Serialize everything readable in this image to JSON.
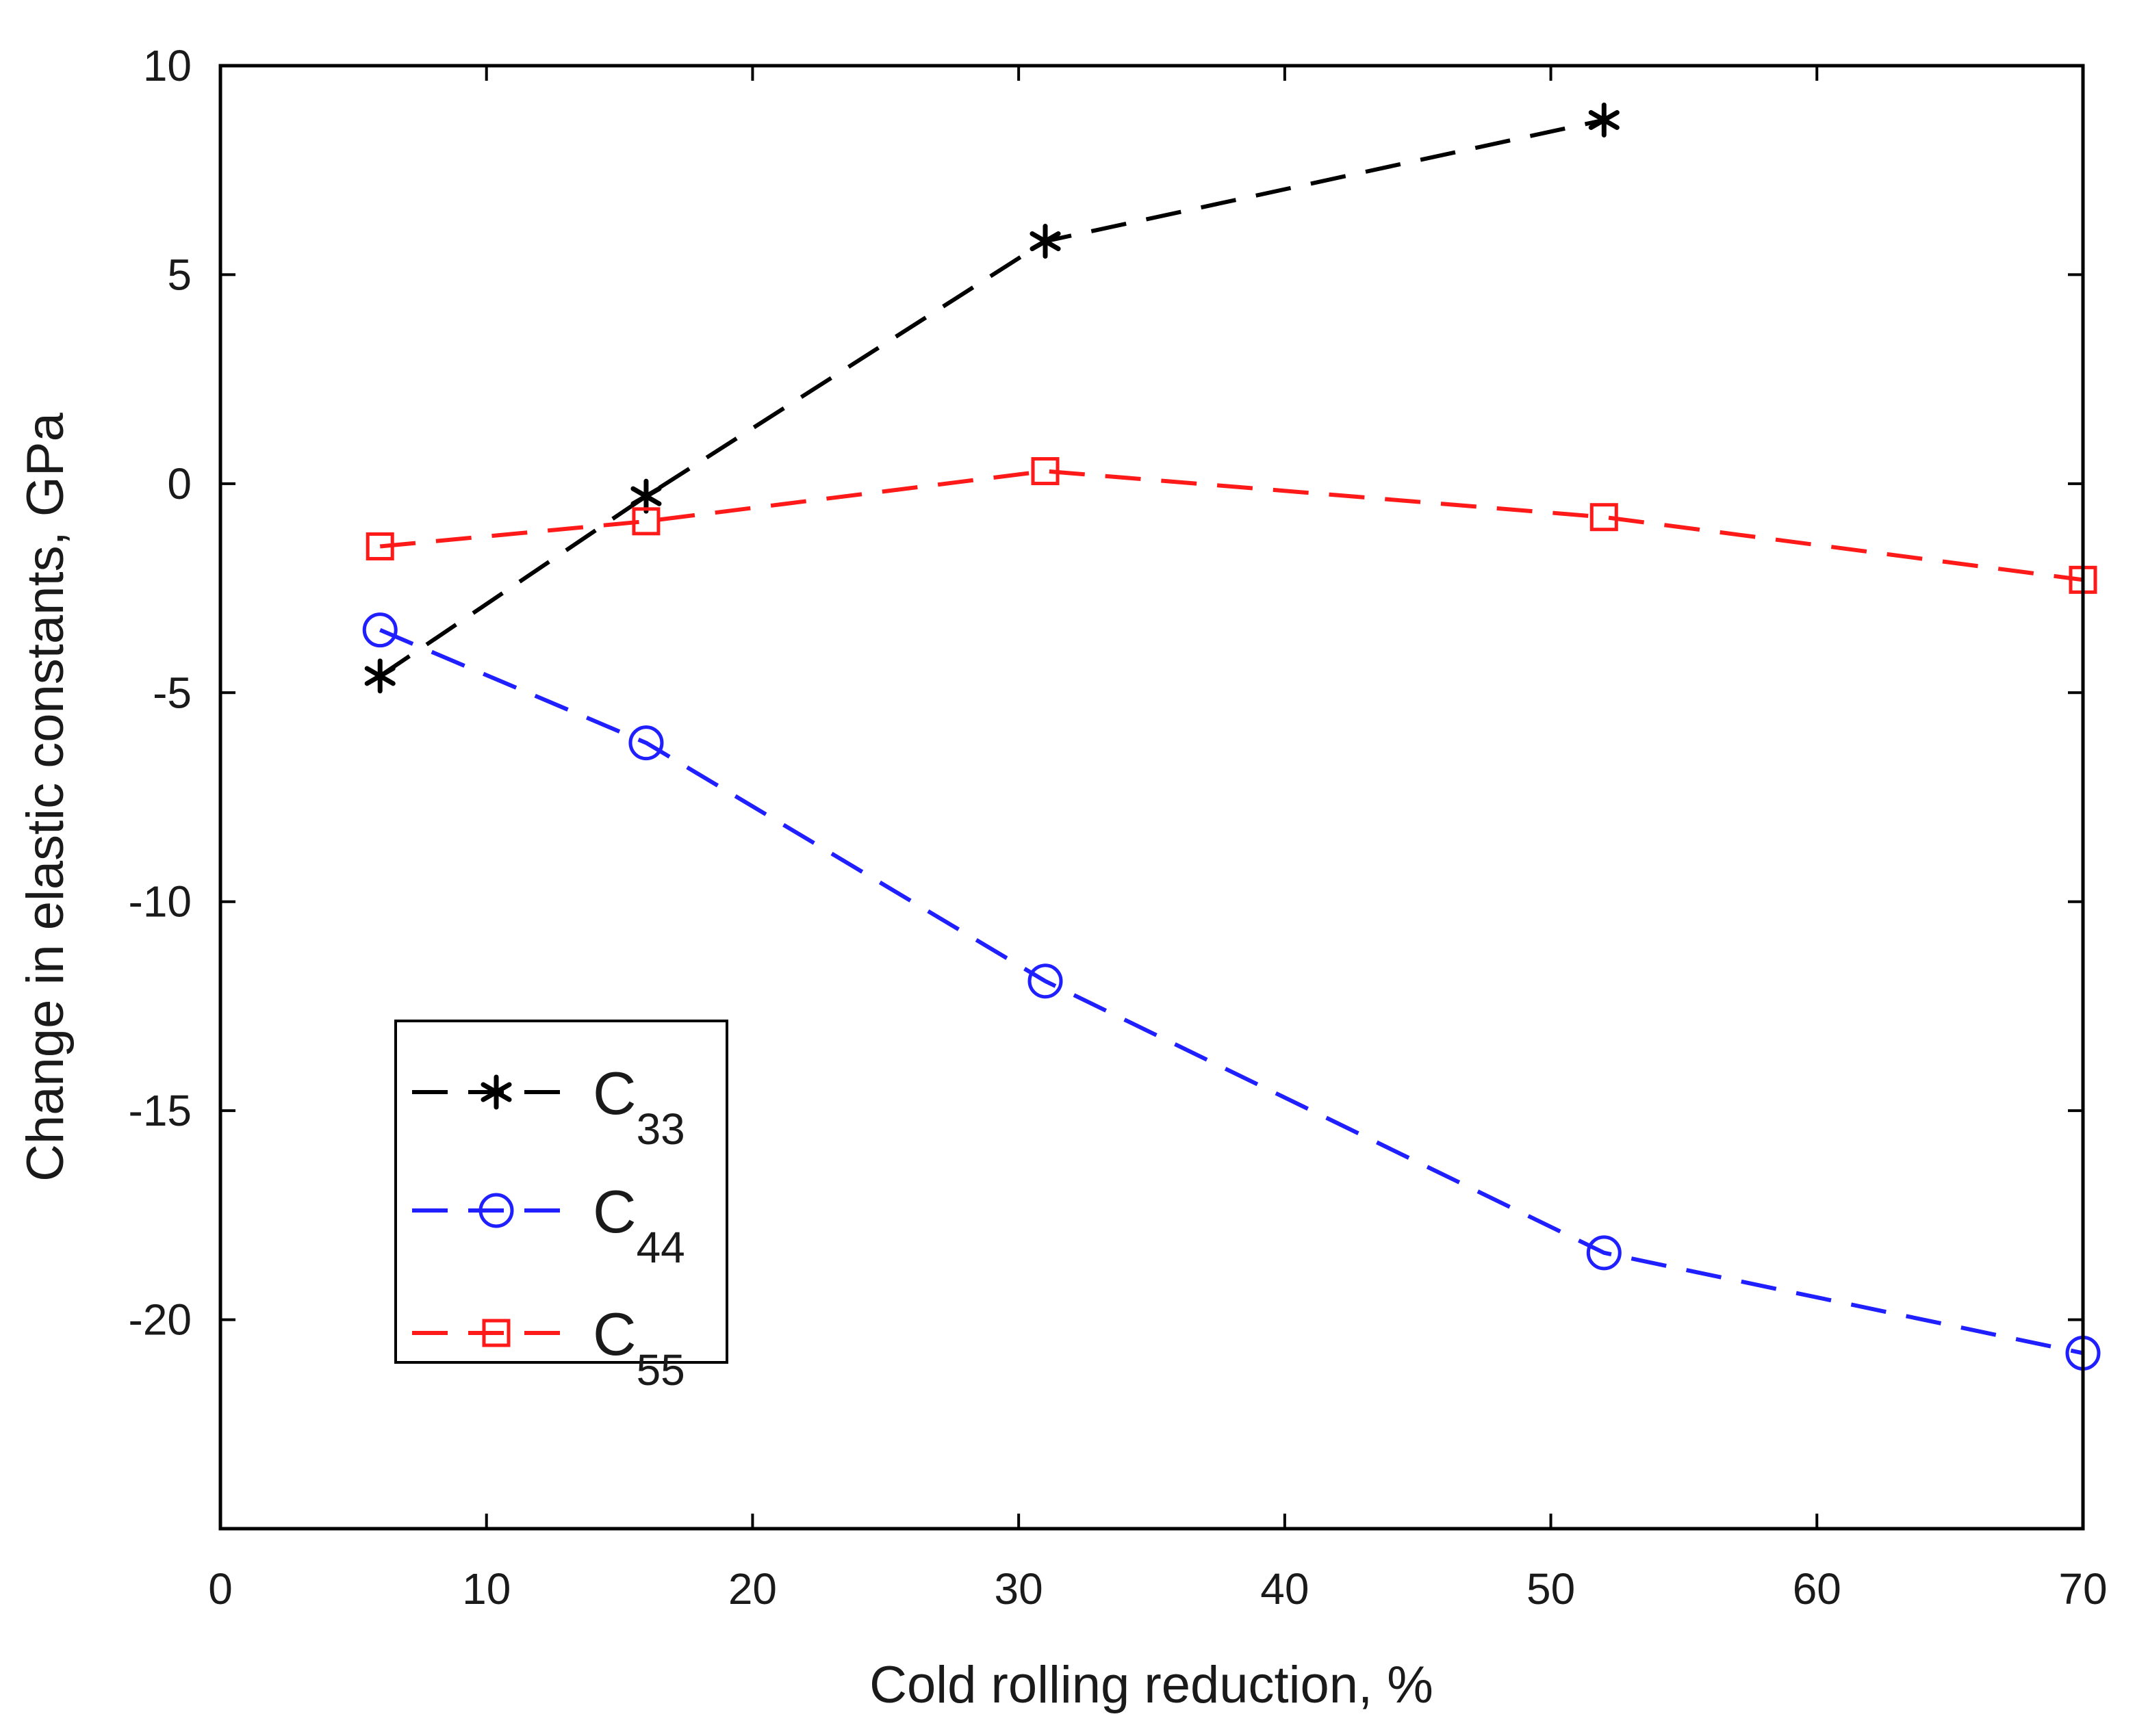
{
  "chart_data": {
    "type": "line",
    "title": "",
    "xlabel": "Cold rolling reduction, %",
    "ylabel": "Change in elastic constants, GPa",
    "xlim": [
      0,
      70
    ],
    "ylim": [
      -25,
      10
    ],
    "xticks": [
      0,
      10,
      20,
      30,
      40,
      50,
      60,
      70
    ],
    "yticks": [
      10,
      5,
      0,
      -5,
      -10,
      -15,
      -20
    ],
    "grid": false,
    "legend_position": "bottom-left",
    "series": [
      {
        "name_main": "C",
        "name_sub": "33",
        "color": "#000000",
        "marker": "asterisk",
        "x": [
          6,
          16,
          31,
          52
        ],
        "y": [
          -4.6,
          -0.3,
          5.8,
          8.7
        ]
      },
      {
        "name_main": "C",
        "name_sub": "44",
        "color": "#1f1fff",
        "marker": "circle",
        "x": [
          6,
          16,
          31,
          52,
          70
        ],
        "y": [
          -3.5,
          -6.2,
          -11.9,
          -18.4,
          -20.8
        ]
      },
      {
        "name_main": "C",
        "name_sub": "55",
        "color": "#ff1a1a",
        "marker": "square",
        "x": [
          6,
          16,
          31,
          52,
          70
        ],
        "y": [
          -1.5,
          -0.9,
          0.3,
          -0.8,
          -2.3
        ]
      }
    ]
  }
}
